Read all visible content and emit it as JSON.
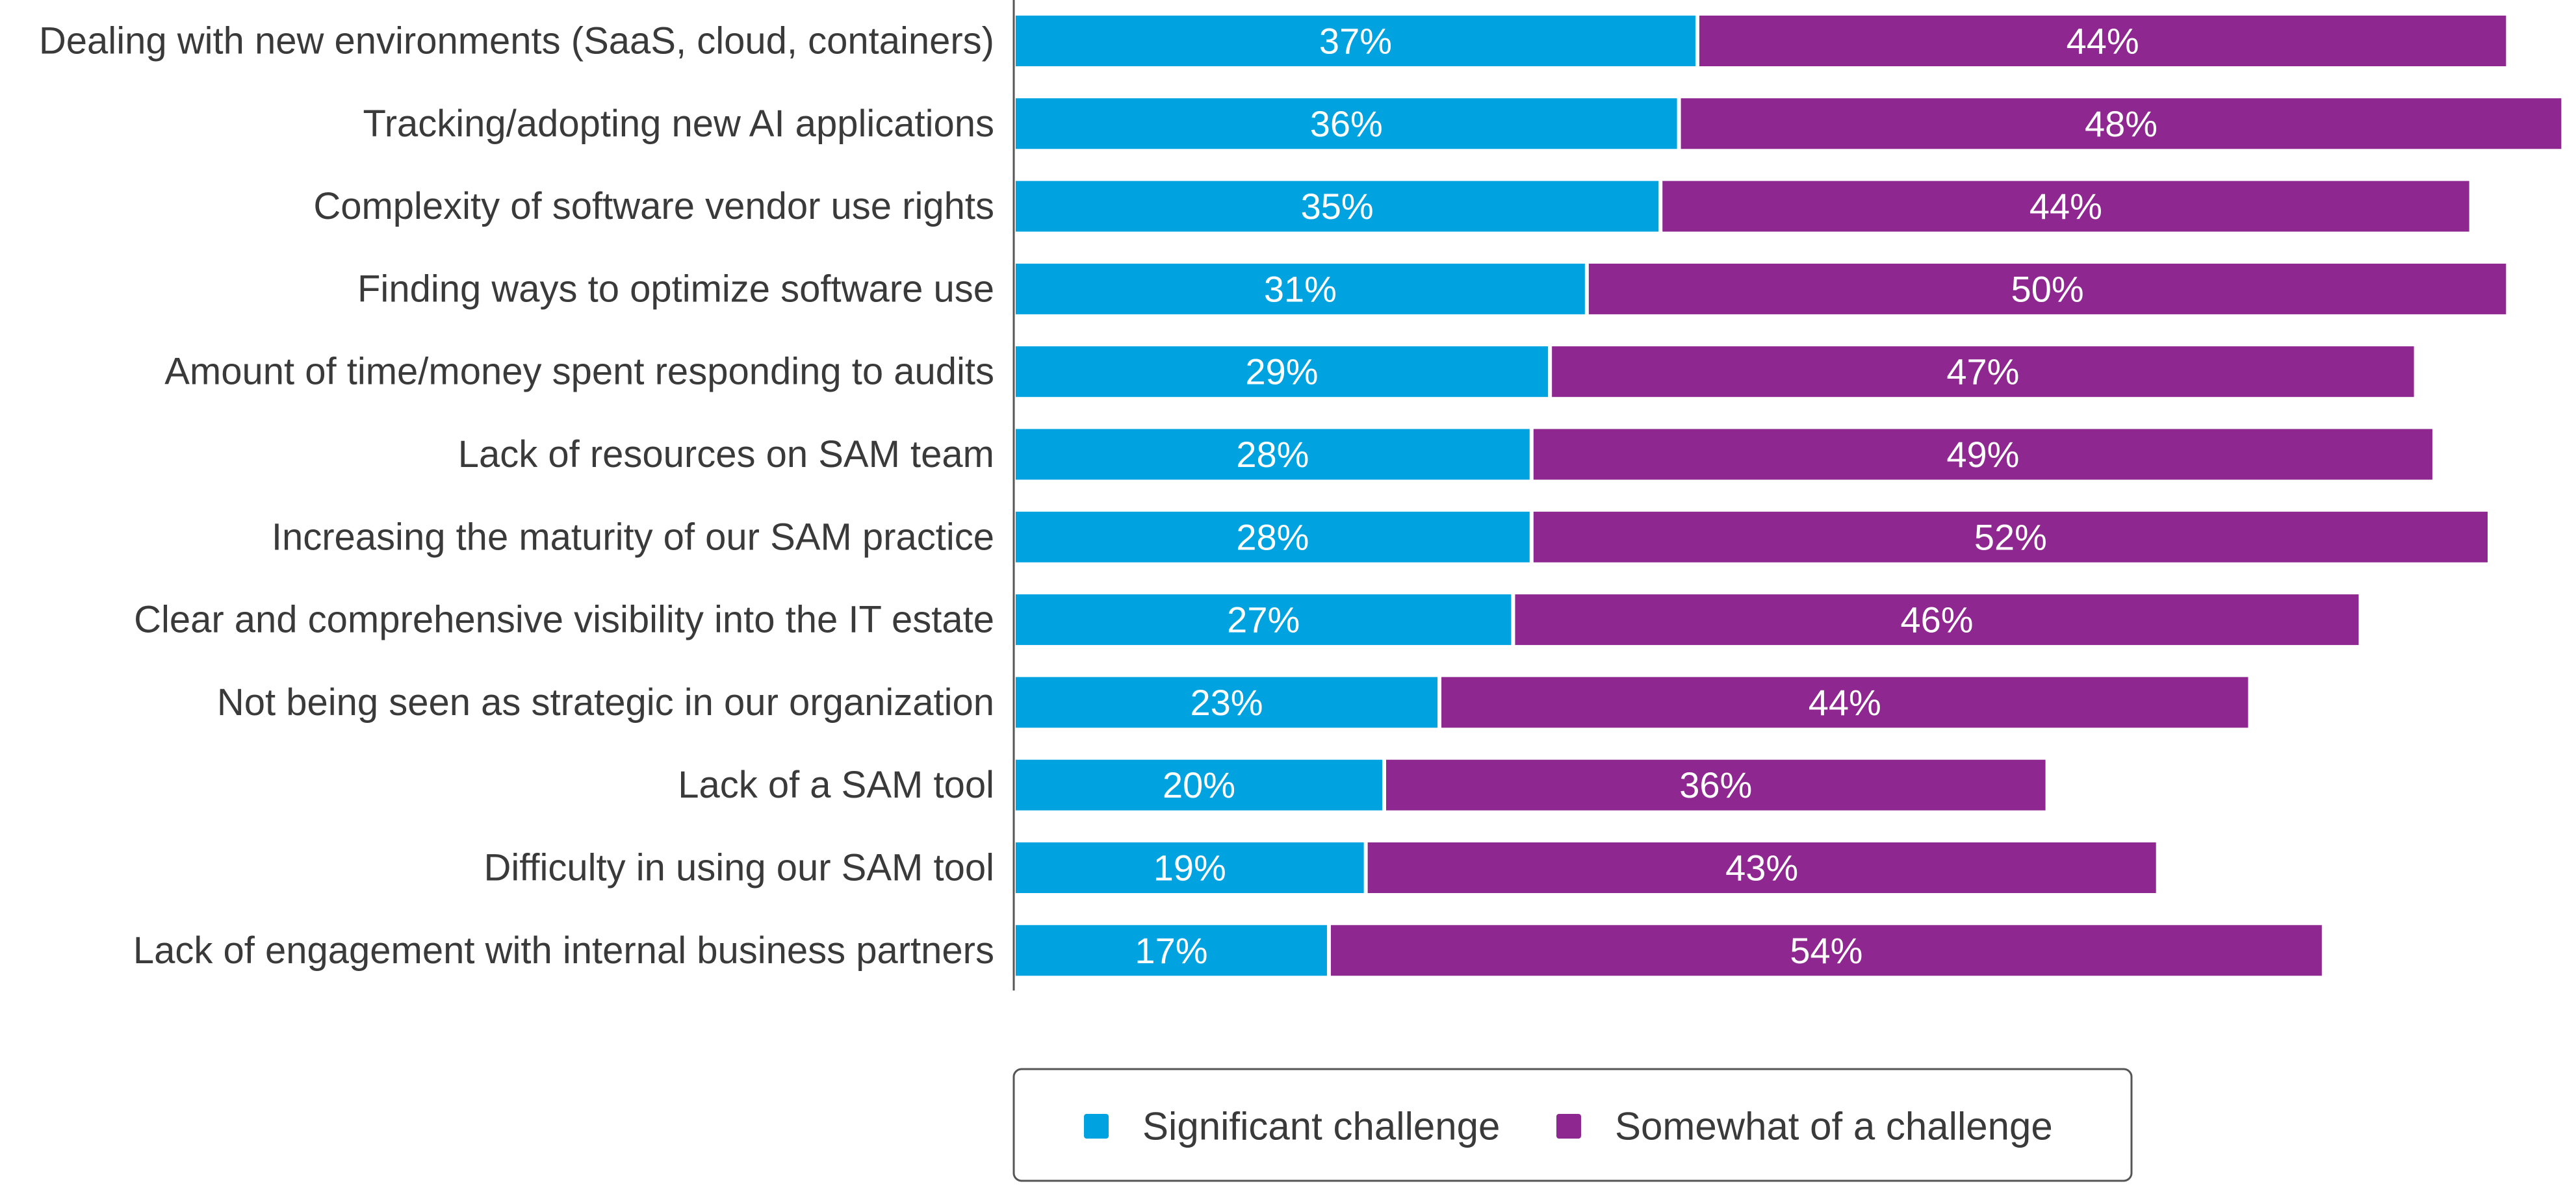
{
  "chart_data": {
    "type": "bar",
    "orientation": "horizontal",
    "stacked": true,
    "categories": [
      "Dealing with new environments (SaaS, cloud, containers)",
      "Tracking/adopting new AI applications",
      "Complexity of software vendor use rights",
      "Finding ways to optimize software use",
      "Amount of time/money spent responding to audits",
      "Lack of resources on SAM team",
      "Increasing the maturity of our SAM practice",
      "Clear and comprehensive visibility into the IT estate",
      "Not being seen as strategic in our organization",
      "Lack of a SAM tool",
      "Difficulty in using our SAM tool",
      "Lack of engagement with internal business partners"
    ],
    "series": [
      {
        "name": "Significant challenge",
        "color": "#00a3e0",
        "values": [
          37,
          36,
          35,
          31,
          29,
          28,
          28,
          27,
          23,
          20,
          19,
          17
        ],
        "labels": [
          "37%",
          "36%",
          "35%",
          "31%",
          "29%",
          "28%",
          "28%",
          "27%",
          "23%",
          "20%",
          "19%",
          "17%"
        ]
      },
      {
        "name": "Somewhat of a challenge",
        "color": "#8e278f",
        "values": [
          44,
          48,
          44,
          50,
          47,
          49,
          52,
          46,
          44,
          36,
          43,
          54
        ],
        "labels": [
          "44%",
          "48%",
          "44%",
          "50%",
          "47%",
          "49%",
          "52%",
          "46%",
          "44%",
          "36%",
          "43%",
          "54%"
        ]
      }
    ],
    "legend_position": "bottom",
    "grid": false,
    "axis_unit": "percent"
  }
}
